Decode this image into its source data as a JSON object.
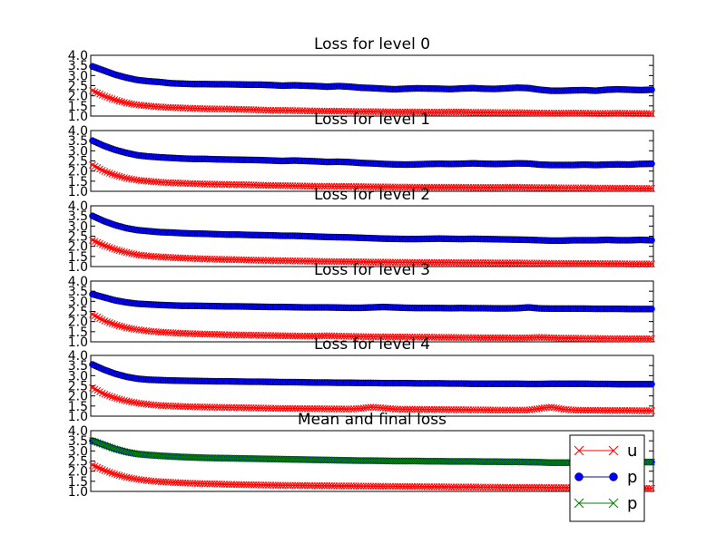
{
  "chart_data": [
    {
      "type": "line",
      "title": "Loss for level 0",
      "ylim": [
        1.0,
        4.0
      ],
      "yticks": [
        "1.0",
        "1.5",
        "2.0",
        "2.5",
        "3.0",
        "3.5",
        "4.0"
      ],
      "series": [
        {
          "name": "p",
          "color": "#0000ff",
          "marker": "circle",
          "values": [
            3.45,
            3.25,
            3.05,
            2.9,
            2.78,
            2.72,
            2.68,
            2.62,
            2.6,
            2.58,
            2.58,
            2.57,
            2.57,
            2.56,
            2.55,
            2.55,
            2.53,
            2.5,
            2.52,
            2.5,
            2.48,
            2.45,
            2.48,
            2.45,
            2.4,
            2.38,
            2.35,
            2.32,
            2.35,
            2.37,
            2.36,
            2.35,
            2.33,
            2.36,
            2.38,
            2.35,
            2.34,
            2.37,
            2.4,
            2.38,
            2.3,
            2.25,
            2.25,
            2.27,
            2.28,
            2.25,
            2.3,
            2.32,
            2.3,
            2.28,
            2.3
          ]
        },
        {
          "name": "u",
          "color": "#ff0000",
          "marker": "x",
          "values": [
            2.25,
            2.0,
            1.8,
            1.65,
            1.55,
            1.5,
            1.45,
            1.42,
            1.4,
            1.38,
            1.36,
            1.35,
            1.35,
            1.33,
            1.32,
            1.3,
            1.28,
            1.28,
            1.27,
            1.26,
            1.25,
            1.24,
            1.24,
            1.23,
            1.22,
            1.22,
            1.21,
            1.2,
            1.2,
            1.2,
            1.19,
            1.19,
            1.2,
            1.2,
            1.18,
            1.18,
            1.17,
            1.17,
            1.17,
            1.16,
            1.15,
            1.14,
            1.14,
            1.15,
            1.14,
            1.13,
            1.13,
            1.14,
            1.13,
            1.13,
            1.12
          ]
        }
      ]
    },
    {
      "type": "line",
      "title": "Loss for level 1",
      "ylim": [
        1.0,
        4.0
      ],
      "yticks": [
        "1.0",
        "1.5",
        "2.0",
        "2.5",
        "3.0",
        "3.5",
        "4.0"
      ],
      "series": [
        {
          "name": "p",
          "color": "#0000ff",
          "marker": "circle",
          "values": [
            3.5,
            3.25,
            3.05,
            2.9,
            2.78,
            2.72,
            2.68,
            2.65,
            2.62,
            2.6,
            2.6,
            2.58,
            2.57,
            2.56,
            2.55,
            2.54,
            2.52,
            2.5,
            2.52,
            2.5,
            2.48,
            2.45,
            2.46,
            2.44,
            2.4,
            2.38,
            2.35,
            2.33,
            2.32,
            2.33,
            2.35,
            2.36,
            2.35,
            2.36,
            2.38,
            2.36,
            2.35,
            2.36,
            2.38,
            2.37,
            2.32,
            2.3,
            2.3,
            2.3,
            2.32,
            2.3,
            2.32,
            2.33,
            2.32,
            2.35,
            2.36
          ]
        },
        {
          "name": "u",
          "color": "#ff0000",
          "marker": "x",
          "values": [
            2.3,
            2.0,
            1.8,
            1.65,
            1.55,
            1.5,
            1.45,
            1.42,
            1.4,
            1.38,
            1.36,
            1.35,
            1.34,
            1.33,
            1.32,
            1.3,
            1.29,
            1.28,
            1.27,
            1.26,
            1.25,
            1.25,
            1.24,
            1.24,
            1.23,
            1.22,
            1.22,
            1.21,
            1.21,
            1.2,
            1.2,
            1.2,
            1.2,
            1.2,
            1.19,
            1.19,
            1.19,
            1.2,
            1.2,
            1.19,
            1.18,
            1.18,
            1.17,
            1.17,
            1.17,
            1.16,
            1.16,
            1.15,
            1.15,
            1.14,
            1.14
          ]
        }
      ]
    },
    {
      "type": "line",
      "title": "Loss for level 2",
      "ylim": [
        1.0,
        4.0
      ],
      "yticks": [
        "1.0",
        "1.5",
        "2.0",
        "2.5",
        "3.0",
        "3.5",
        "4.0"
      ],
      "series": [
        {
          "name": "p",
          "color": "#0000ff",
          "marker": "circle",
          "values": [
            3.5,
            3.25,
            3.05,
            2.9,
            2.8,
            2.75,
            2.7,
            2.68,
            2.65,
            2.63,
            2.62,
            2.6,
            2.58,
            2.58,
            2.56,
            2.55,
            2.54,
            2.52,
            2.52,
            2.5,
            2.48,
            2.46,
            2.45,
            2.44,
            2.42,
            2.4,
            2.38,
            2.37,
            2.36,
            2.36,
            2.37,
            2.38,
            2.37,
            2.36,
            2.37,
            2.36,
            2.35,
            2.34,
            2.33,
            2.32,
            2.3,
            2.28,
            2.28,
            2.3,
            2.3,
            2.3,
            2.32,
            2.3,
            2.3,
            2.32,
            2.3
          ]
        },
        {
          "name": "u",
          "color": "#ff0000",
          "marker": "x",
          "values": [
            2.3,
            2.05,
            1.85,
            1.7,
            1.58,
            1.52,
            1.48,
            1.45,
            1.42,
            1.4,
            1.38,
            1.36,
            1.35,
            1.34,
            1.32,
            1.31,
            1.3,
            1.29,
            1.28,
            1.27,
            1.26,
            1.25,
            1.25,
            1.24,
            1.23,
            1.22,
            1.22,
            1.21,
            1.21,
            1.2,
            1.2,
            1.2,
            1.2,
            1.19,
            1.19,
            1.19,
            1.18,
            1.18,
            1.18,
            1.17,
            1.17,
            1.16,
            1.16,
            1.15,
            1.15,
            1.15,
            1.14,
            1.14,
            1.13,
            1.13,
            1.13
          ]
        }
      ]
    },
    {
      "type": "line",
      "title": "Loss for level 3",
      "ylim": [
        1.0,
        4.0
      ],
      "yticks": [
        "1.0",
        "1.5",
        "2.0",
        "2.5",
        "3.0",
        "3.5",
        "4.0"
      ],
      "series": [
        {
          "name": "p",
          "color": "#0000ff",
          "marker": "circle",
          "values": [
            3.35,
            3.2,
            3.05,
            2.95,
            2.88,
            2.85,
            2.82,
            2.8,
            2.78,
            2.78,
            2.77,
            2.76,
            2.75,
            2.75,
            2.74,
            2.73,
            2.72,
            2.72,
            2.71,
            2.7,
            2.7,
            2.7,
            2.69,
            2.68,
            2.68,
            2.7,
            2.72,
            2.7,
            2.68,
            2.67,
            2.67,
            2.67,
            2.66,
            2.67,
            2.66,
            2.66,
            2.65,
            2.65,
            2.66,
            2.7,
            2.65,
            2.64,
            2.64,
            2.64,
            2.64,
            2.63,
            2.63,
            2.63,
            2.62,
            2.62,
            2.62
          ]
        },
        {
          "name": "u",
          "color": "#ff0000",
          "marker": "x",
          "values": [
            2.35,
            2.05,
            1.85,
            1.7,
            1.6,
            1.53,
            1.48,
            1.45,
            1.42,
            1.4,
            1.38,
            1.37,
            1.35,
            1.34,
            1.33,
            1.32,
            1.31,
            1.3,
            1.29,
            1.28,
            1.28,
            1.3,
            1.28,
            1.27,
            1.26,
            1.25,
            1.25,
            1.24,
            1.24,
            1.23,
            1.23,
            1.22,
            1.22,
            1.21,
            1.21,
            1.2,
            1.2,
            1.2,
            1.19,
            1.2,
            1.22,
            1.2,
            1.18,
            1.18,
            1.17,
            1.17,
            1.16,
            1.16,
            1.15,
            1.15,
            1.15
          ]
        }
      ]
    },
    {
      "type": "line",
      "title": "Loss for level 4",
      "ylim": [
        1.0,
        4.0
      ],
      "yticks": [
        "1.0",
        "1.5",
        "2.0",
        "2.5",
        "3.0",
        "3.5",
        "4.0"
      ],
      "series": [
        {
          "name": "p",
          "color": "#0000ff",
          "marker": "circle",
          "values": [
            3.55,
            3.3,
            3.1,
            2.95,
            2.85,
            2.8,
            2.78,
            2.76,
            2.75,
            2.74,
            2.73,
            2.72,
            2.72,
            2.71,
            2.7,
            2.7,
            2.69,
            2.68,
            2.68,
            2.67,
            2.66,
            2.66,
            2.65,
            2.65,
            2.64,
            2.64,
            2.63,
            2.63,
            2.63,
            2.62,
            2.62,
            2.62,
            2.61,
            2.61,
            2.6,
            2.6,
            2.6,
            2.6,
            2.6,
            2.59,
            2.59,
            2.6,
            2.6,
            2.6,
            2.6,
            2.59,
            2.59,
            2.58,
            2.58,
            2.58,
            2.58
          ]
        },
        {
          "name": "u",
          "color": "#ff0000",
          "marker": "x",
          "values": [
            2.4,
            2.1,
            1.9,
            1.75,
            1.65,
            1.58,
            1.53,
            1.5,
            1.48,
            1.46,
            1.45,
            1.44,
            1.43,
            1.42,
            1.41,
            1.4,
            1.39,
            1.38,
            1.38,
            1.37,
            1.37,
            1.36,
            1.36,
            1.35,
            1.38,
            1.45,
            1.4,
            1.35,
            1.34,
            1.34,
            1.33,
            1.33,
            1.32,
            1.32,
            1.31,
            1.31,
            1.3,
            1.3,
            1.3,
            1.3,
            1.38,
            1.45,
            1.35,
            1.3,
            1.29,
            1.29,
            1.28,
            1.28,
            1.28,
            1.27,
            1.27
          ]
        }
      ]
    },
    {
      "type": "line",
      "title": "Mean and final loss",
      "ylim": [
        1.0,
        4.0
      ],
      "yticks": [
        "1.0",
        "1.5",
        "2.0",
        "2.5",
        "3.0",
        "3.5",
        "4.0"
      ],
      "legend": {
        "position": "lower-right",
        "entries": [
          "u",
          "p",
          "p"
        ]
      },
      "series": [
        {
          "name": "u",
          "color": "#ff0000",
          "marker": "x",
          "values": [
            2.3,
            2.05,
            1.85,
            1.7,
            1.6,
            1.53,
            1.48,
            1.45,
            1.42,
            1.4,
            1.38,
            1.37,
            1.35,
            1.34,
            1.33,
            1.32,
            1.31,
            1.3,
            1.3,
            1.29,
            1.28,
            1.28,
            1.27,
            1.27,
            1.26,
            1.26,
            1.25,
            1.25,
            1.24,
            1.24,
            1.23,
            1.23,
            1.22,
            1.22,
            1.22,
            1.21,
            1.21,
            1.2,
            1.2,
            1.2,
            1.2,
            1.19,
            1.19,
            1.18,
            1.18,
            1.17,
            1.17,
            1.16,
            1.16,
            1.15,
            1.15
          ]
        },
        {
          "name": "p",
          "color": "#0000ff",
          "marker": "circle",
          "values": [
            3.5,
            3.3,
            3.1,
            2.95,
            2.85,
            2.8,
            2.76,
            2.73,
            2.7,
            2.68,
            2.66,
            2.65,
            2.64,
            2.63,
            2.62,
            2.61,
            2.6,
            2.59,
            2.58,
            2.57,
            2.56,
            2.55,
            2.54,
            2.53,
            2.52,
            2.52,
            2.51,
            2.5,
            2.5,
            2.5,
            2.49,
            2.49,
            2.48,
            2.48,
            2.48,
            2.47,
            2.47,
            2.46,
            2.46,
            2.45,
            2.44,
            2.42,
            2.42,
            2.42,
            2.43,
            2.43,
            2.43,
            2.44,
            2.44,
            2.45,
            2.45
          ]
        },
        {
          "name": "p",
          "color": "#008000",
          "marker": "x",
          "values": [
            3.5,
            3.3,
            3.1,
            2.95,
            2.85,
            2.8,
            2.76,
            2.73,
            2.7,
            2.68,
            2.66,
            2.65,
            2.64,
            2.63,
            2.62,
            2.61,
            2.6,
            2.59,
            2.58,
            2.57,
            2.56,
            2.55,
            2.54,
            2.53,
            2.52,
            2.52,
            2.51,
            2.5,
            2.5,
            2.5,
            2.49,
            2.49,
            2.48,
            2.48,
            2.48,
            2.47,
            2.47,
            2.46,
            2.46,
            2.45,
            2.44,
            2.42,
            2.42,
            2.42,
            2.43,
            2.43,
            2.43,
            2.44,
            2.44,
            2.45,
            2.45
          ]
        }
      ]
    }
  ]
}
